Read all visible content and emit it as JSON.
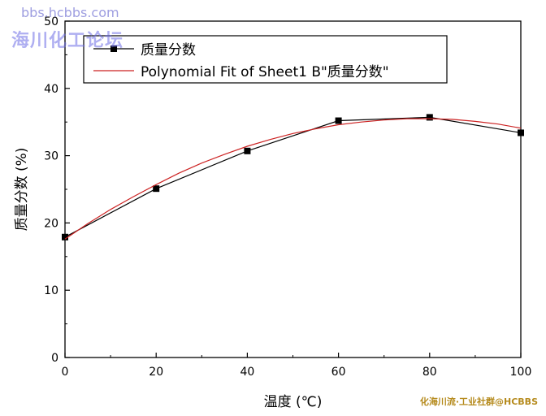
{
  "watermarks": {
    "top_small": "bbs.hcbbs.com",
    "top_large": "海川化工论坛",
    "bottom_right": "化海川流·工业社群@HCBBS"
  },
  "chart_data": {
    "type": "line",
    "xlabel": "温度 (℃)",
    "ylabel": "质量分数 (%)",
    "xlim": [
      0,
      100
    ],
    "ylim": [
      0,
      50
    ],
    "xticks": [
      0,
      20,
      40,
      60,
      80,
      100
    ],
    "yticks": [
      0,
      10,
      20,
      30,
      40,
      50
    ],
    "legend_position": "top-left",
    "grid": false,
    "series": [
      {
        "name": "质量分数",
        "style": "line-with-square-markers",
        "color": "#000000",
        "x": [
          0,
          20,
          40,
          60,
          80,
          100
        ],
        "y": [
          17.9,
          25.1,
          30.7,
          35.2,
          35.7,
          33.4
        ]
      },
      {
        "name": "Polynomial Fit of Sheet1 B\"质量分数\"",
        "style": "smooth-line",
        "color": "#cc2222",
        "x": [
          0,
          5,
          10,
          15,
          20,
          25,
          30,
          35,
          40,
          45,
          50,
          55,
          60,
          65,
          70,
          75,
          80,
          85,
          90,
          95,
          100
        ],
        "y": [
          17.6,
          19.9,
          22.0,
          23.9,
          25.7,
          27.4,
          28.9,
          30.2,
          31.4,
          32.4,
          33.3,
          34.0,
          34.6,
          35.0,
          35.3,
          35.5,
          35.5,
          35.4,
          35.1,
          34.7,
          34.1
        ]
      }
    ]
  }
}
